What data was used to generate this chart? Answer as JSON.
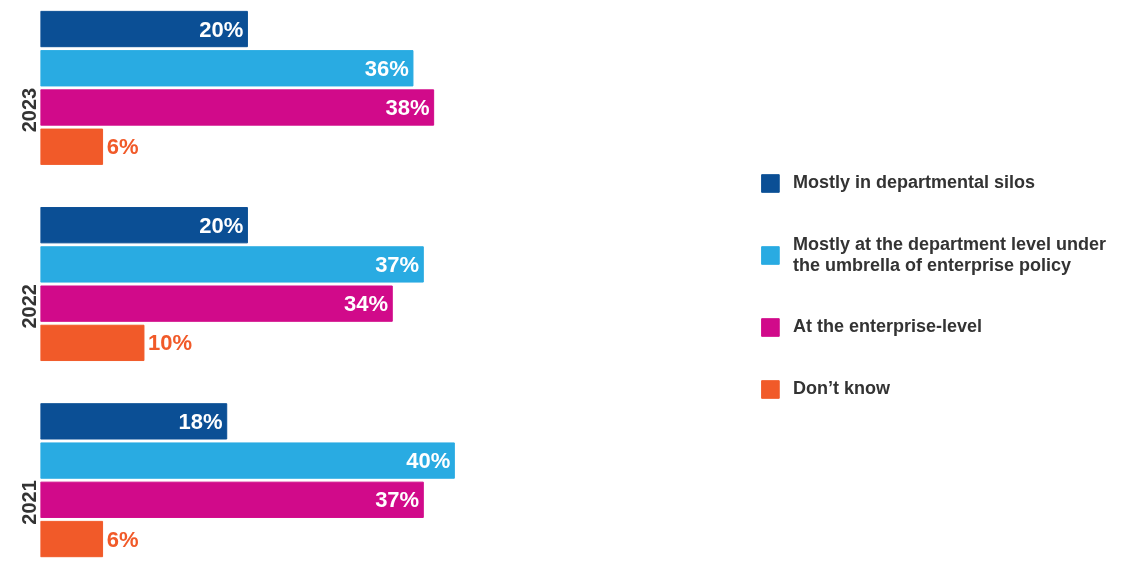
{
  "chart_data": {
    "type": "bar",
    "orientation": "horizontal",
    "categories": [
      "2023",
      "2022",
      "2021"
    ],
    "series": [
      {
        "name": "Mostly in departmental silos",
        "color": "#0b4f95",
        "values": [
          20,
          20,
          18
        ],
        "value_labels": [
          "20%",
          "20%",
          "18%"
        ]
      },
      {
        "name": "Mostly at the department level under the umbrella of enterprise policy",
        "color": "#29abe2",
        "values": [
          36,
          37,
          40
        ],
        "value_labels": [
          "36%",
          "37%",
          "40%"
        ]
      },
      {
        "name": "At the enterprise-level",
        "color": "#d10a8a",
        "values": [
          38,
          34,
          37
        ],
        "value_labels": [
          "38%",
          "34%",
          "37%"
        ]
      },
      {
        "name": "Don’t know",
        "color": "#f15a29",
        "values": [
          6,
          10,
          6
        ],
        "value_labels": [
          "6%",
          "10%",
          "6%"
        ]
      }
    ],
    "legend": "right"
  }
}
